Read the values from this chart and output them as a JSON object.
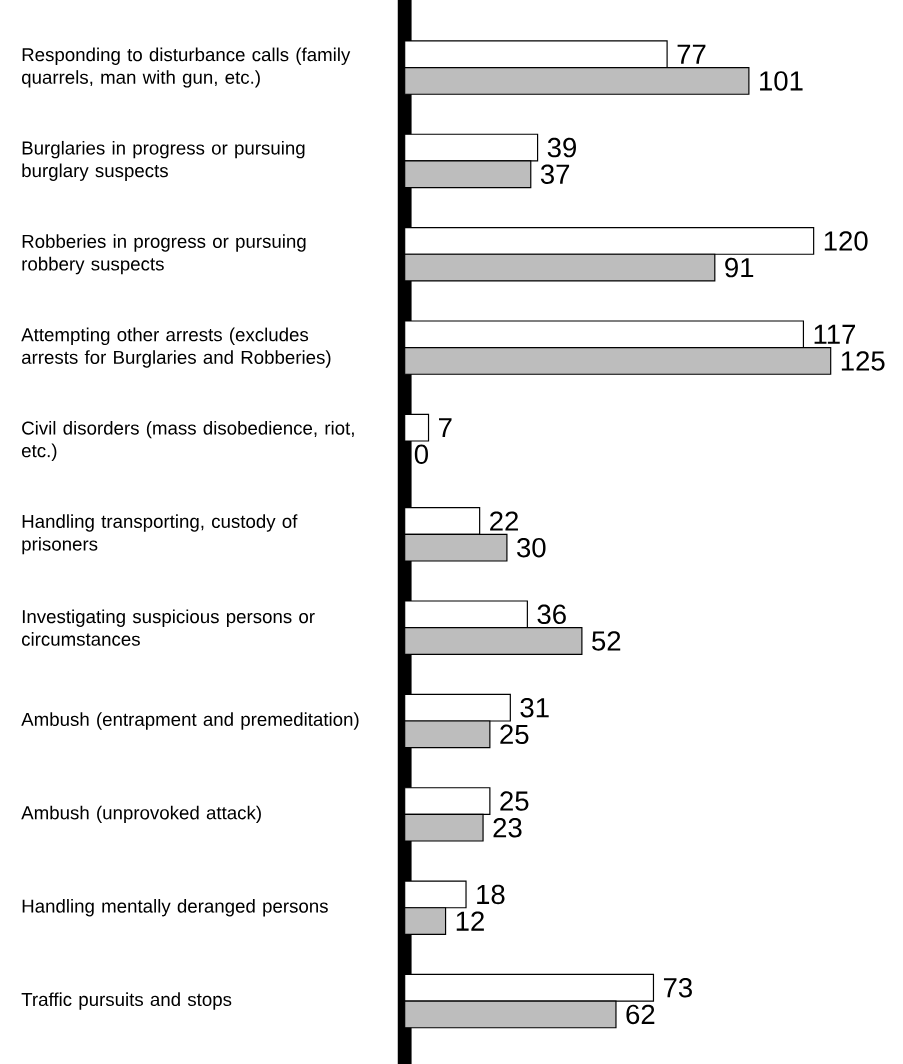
{
  "chart_data": {
    "type": "bar",
    "orientation": "horizontal",
    "data_labels": true,
    "categories": [
      "Responding to disturbance calls (family quarrels, man with gun, etc.)",
      "Burglaries in progress or pursuing burglary suspects",
      "Robberies in progress or pursuing robbery suspects",
      "Attempting other arrests (excludes arrests for Burglaries and Robberies)",
      "Civil disorders (mass disobedience, riot, etc.)",
      "Handling transporting, custody of prisoners",
      "Investigating suspicious persons or circumstances",
      "Ambush (entrapment and premeditation)",
      "Ambush (unprovoked attack)",
      "Handling mentally deranged persons",
      "Traffic pursuits and stops"
    ],
    "series": [
      {
        "color": "#ffffff",
        "values": [
          77,
          39,
          120,
          117,
          7,
          22,
          36,
          31,
          25,
          18,
          73
        ]
      },
      {
        "color": "#bdbdbd",
        "values": [
          101,
          37,
          91,
          125,
          0,
          30,
          52,
          25,
          23,
          12,
          62
        ]
      }
    ]
  }
}
